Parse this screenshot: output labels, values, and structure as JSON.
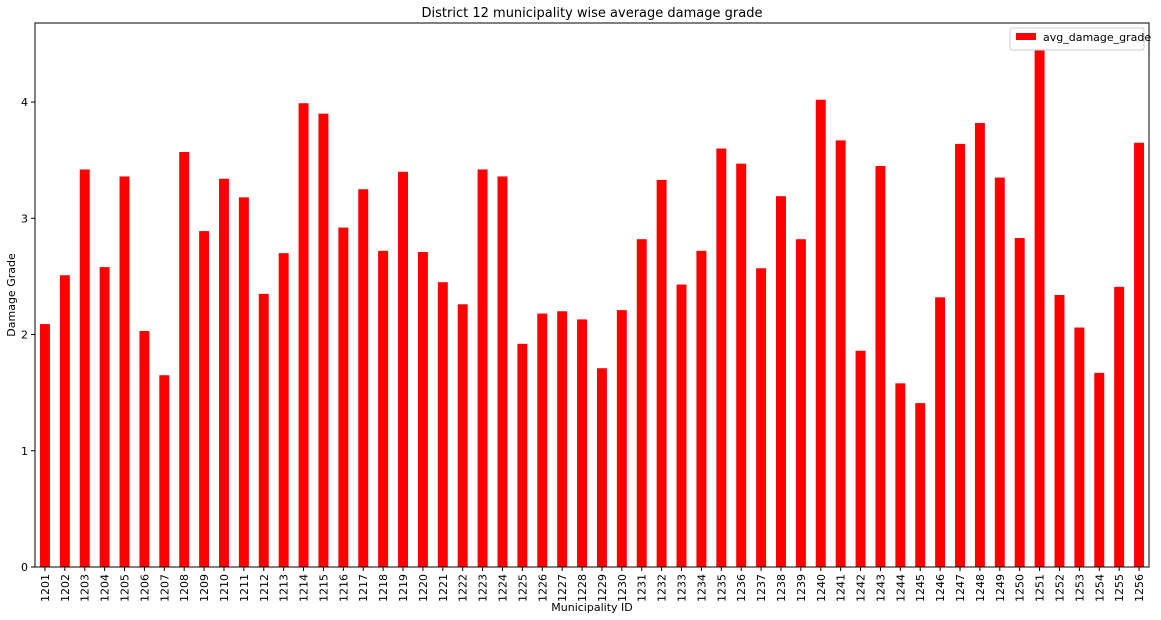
{
  "chart_data": {
    "type": "bar",
    "title": "District 12 municipality wise average damage grade",
    "xlabel": "Municipality ID",
    "ylabel": "Damage Grade",
    "ylim": [
      0,
      4.68
    ],
    "yticks": [
      0,
      1,
      2,
      3,
      4
    ],
    "grid": false,
    "legend_position": "top-right",
    "series": [
      {
        "name": "avg_damage_grade",
        "color": "#ff0000",
        "values": [
          2.09,
          2.51,
          3.42,
          2.58,
          3.36,
          2.03,
          1.65,
          3.57,
          2.89,
          3.34,
          3.18,
          2.35,
          2.7,
          3.99,
          3.9,
          2.92,
          3.25,
          2.72,
          3.4,
          2.71,
          2.45,
          2.26,
          3.42,
          3.36,
          1.92,
          2.18,
          2.2,
          2.13,
          1.71,
          2.21,
          2.82,
          3.33,
          2.43,
          2.72,
          3.6,
          3.47,
          2.57,
          3.19,
          2.82,
          4.02,
          3.67,
          1.86,
          3.45,
          1.58,
          1.41,
          2.32,
          3.64,
          3.82,
          3.35,
          2.83,
          4.46,
          2.34,
          2.06,
          1.67,
          2.41,
          3.65
        ]
      }
    ],
    "categories": [
      "1201",
      "1202",
      "1203",
      "1204",
      "1205",
      "1206",
      "1207",
      "1208",
      "1209",
      "1210",
      "1211",
      "1212",
      "1213",
      "1214",
      "1215",
      "1216",
      "1217",
      "1218",
      "1219",
      "1220",
      "1221",
      "1222",
      "1223",
      "1224",
      "1225",
      "1226",
      "1227",
      "1228",
      "1229",
      "1230",
      "1231",
      "1232",
      "1233",
      "1234",
      "1235",
      "1236",
      "1237",
      "1238",
      "1239",
      "1240",
      "1241",
      "1242",
      "1243",
      "1244",
      "1245",
      "1246",
      "1247",
      "1248",
      "1249",
      "1250",
      "1251",
      "1252",
      "1253",
      "1254",
      "1255",
      "1256"
    ]
  }
}
